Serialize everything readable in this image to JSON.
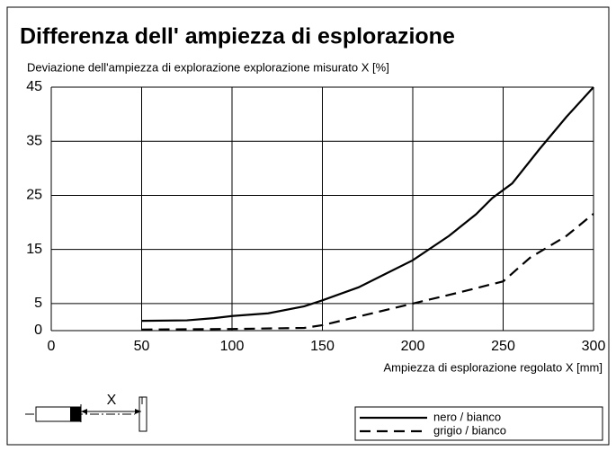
{
  "chart_data": {
    "type": "line",
    "title": "Differenza dell' ampiezza di esplorazione",
    "y_label": "Deviazione dell'ampiezza di explorazione explorazione misurato X [%]",
    "x_label": "Ampiezza di esplorazione regolato X [mm]",
    "diagram_label": "X",
    "xlim": [
      0,
      300
    ],
    "xticks": [
      0,
      50,
      100,
      150,
      200,
      250,
      300
    ],
    "ylim": [
      0,
      45
    ],
    "yticks": [
      0,
      5,
      15,
      25,
      35,
      45
    ],
    "grid": true,
    "legend_position": "bottom-right",
    "series": [
      {
        "name": "nero / bianco",
        "color": "#000000",
        "dash": false,
        "x": [
          50,
          75,
          90,
          100,
          120,
          140,
          150,
          170,
          185,
          200,
          220,
          235,
          244,
          255,
          270,
          285,
          300
        ],
        "values": [
          1.8,
          1.9,
          2.3,
          2.7,
          3.2,
          4.5,
          5.6,
          8,
          10.5,
          13,
          17.5,
          21.5,
          24.5,
          27.2,
          33.5,
          39.5,
          45
        ]
      },
      {
        "name": "grigio / bianco",
        "color": "#000000",
        "dash": true,
        "x": [
          50,
          100,
          140,
          150,
          175,
          200,
          225,
          250,
          265,
          285,
          300
        ],
        "values": [
          0.2,
          0.3,
          0.5,
          1,
          3,
          5,
          7,
          9.1,
          13.5,
          17.5,
          21.6
        ]
      }
    ]
  }
}
